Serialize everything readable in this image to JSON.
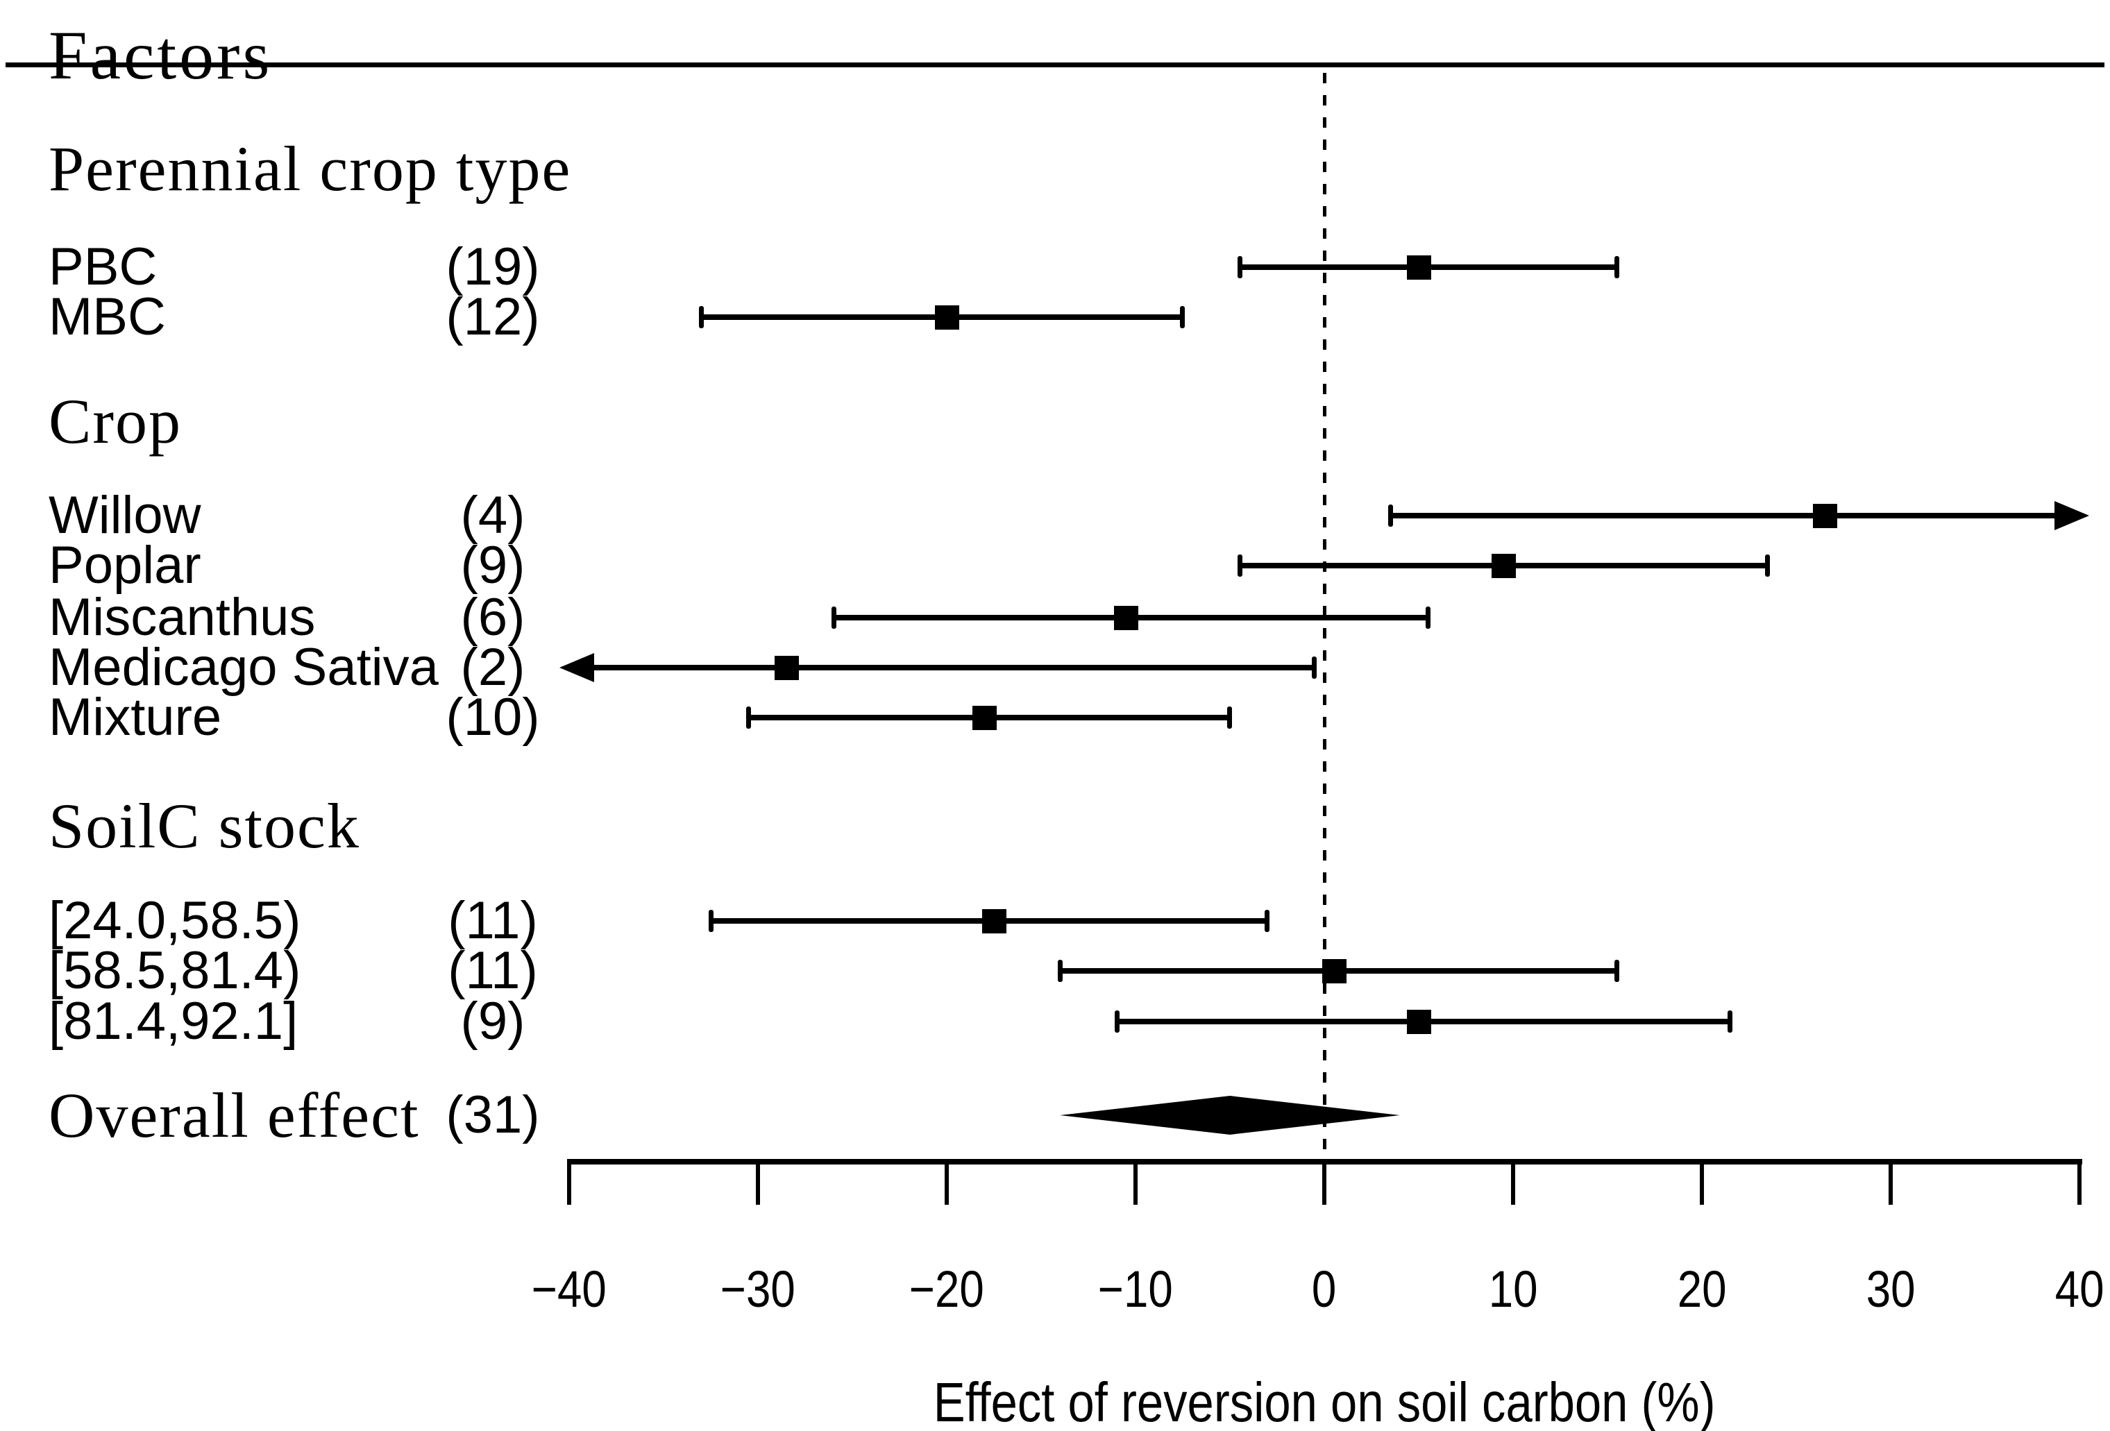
{
  "figure": {
    "title": "Factors",
    "xlabel": "Effect of reversion on soil carbon (%)"
  },
  "chart_data": {
    "type": "forest",
    "title": "Factors",
    "xlabel": "Effect of reversion on soil carbon (%)",
    "axis": {
      "min": -40,
      "max": 40,
      "tick_values": [
        -40,
        -30,
        -20,
        -10,
        0,
        10,
        20,
        30,
        40
      ],
      "tick_labels": [
        "−40",
        "−30",
        "−20",
        "−10",
        "0",
        "10",
        "20",
        "30",
        "40"
      ],
      "reference_line": 0,
      "grid": false
    },
    "marker_color": "#000000",
    "groups": [
      {
        "header": "Perennial crop type",
        "rows": [
          {
            "label": "PBC",
            "n": 19,
            "count_label": "(19)",
            "mean": 5,
            "ci_low": -4.5,
            "ci_high": 15.5,
            "arrow_low": false,
            "arrow_high": false
          },
          {
            "label": "MBC",
            "n": 12,
            "count_label": "(12)",
            "mean": -20,
            "ci_low": -33,
            "ci_high": -7.5,
            "arrow_low": false,
            "arrow_high": false
          }
        ]
      },
      {
        "header": "Crop",
        "rows": [
          {
            "label": "Willow",
            "n": 4,
            "count_label": "(4)",
            "mean": 26.5,
            "ci_low": 3.5,
            "ci_high": 40,
            "arrow_low": false,
            "arrow_high": true
          },
          {
            "label": "Poplar",
            "n": 9,
            "count_label": "(9)",
            "mean": 9.5,
            "ci_low": -4.5,
            "ci_high": 23.5,
            "arrow_low": false,
            "arrow_high": false
          },
          {
            "label": "Miscanthus",
            "n": 6,
            "count_label": "(6)",
            "mean": -10.5,
            "ci_low": -26,
            "ci_high": 5.5,
            "arrow_low": false,
            "arrow_high": false
          },
          {
            "label": "Medicago Sativa",
            "n": 2,
            "count_label": "(2)",
            "mean": -28.5,
            "ci_low": -40,
            "ci_high": -0.5,
            "arrow_low": true,
            "arrow_high": false
          },
          {
            "label": "Mixture",
            "n": 10,
            "count_label": "(10)",
            "mean": -18,
            "ci_low": -30.5,
            "ci_high": -5,
            "arrow_low": false,
            "arrow_high": false
          }
        ]
      },
      {
        "header": "SoilC stock",
        "rows": [
          {
            "label": "[24.0,58.5)",
            "n": 11,
            "count_label": "(11)",
            "mean": -17.5,
            "ci_low": -32.5,
            "ci_high": -3,
            "arrow_low": false,
            "arrow_high": false
          },
          {
            "label": "[58.5,81.4)",
            "n": 11,
            "count_label": "(11)",
            "mean": 0.5,
            "ci_low": -14,
            "ci_high": 15.5,
            "arrow_low": false,
            "arrow_high": false
          },
          {
            "label": "[81.4,92.1]",
            "n": 9,
            "count_label": "(9)",
            "mean": 5,
            "ci_low": -11,
            "ci_high": 21.5,
            "arrow_low": false,
            "arrow_high": false
          }
        ]
      }
    ],
    "overall": {
      "label": "Overall effect",
      "n": 31,
      "count_label": "(31)",
      "mean": -5,
      "ci_low": -14,
      "ci_high": 4
    }
  }
}
